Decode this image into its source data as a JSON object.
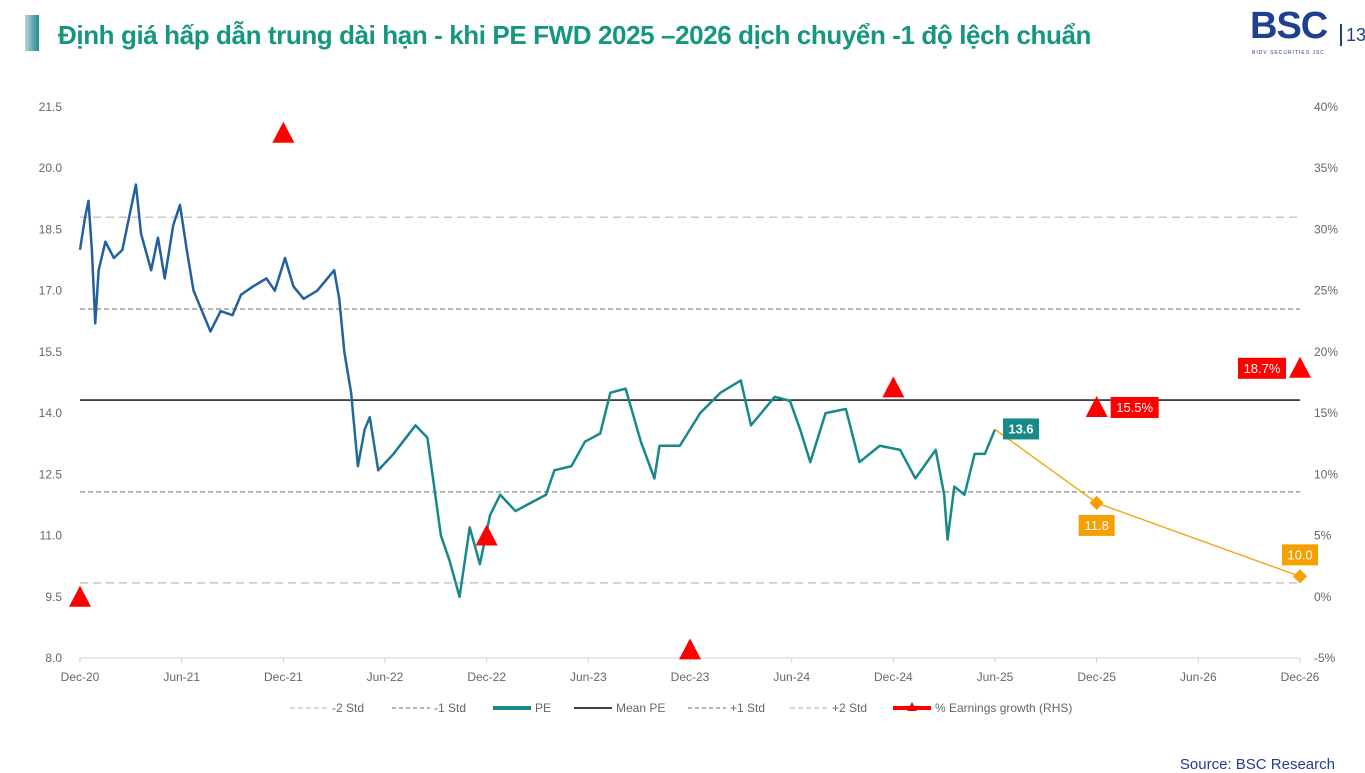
{
  "header": {
    "title": "Định giá hấp dẫn trung dài hạn - khi PE FWD 2025 –2026 dịch chuyển -1 độ lệch chuẩn",
    "logo": "BSC",
    "logo_sub": "BIDV SECURITIES JSC",
    "page": "13"
  },
  "source": "Source: BSC Research",
  "chart_data": {
    "type": "line",
    "x_unit": "months since Dec-20",
    "xticks": [
      "Dec-20",
      "Jun-21",
      "Dec-21",
      "Jun-22",
      "Dec-22",
      "Jun-23",
      "Dec-23",
      "Jun-24",
      "Dec-24",
      "Jun-25",
      "Dec-25",
      "Jun-26",
      "Dec-26"
    ],
    "ylim": [
      8.0,
      21.5
    ],
    "yticks": [
      "8.0",
      "9.5",
      "11.0",
      "12.5",
      "14.0",
      "15.5",
      "17.0",
      "18.5",
      "20.0",
      "21.5"
    ],
    "y2lim": [
      -5,
      40
    ],
    "y2ticks": [
      "-5%",
      "0%",
      "5%",
      "10%",
      "15%",
      "20%",
      "25%",
      "30%",
      "35%",
      "40%"
    ],
    "bands": {
      "-2 Std": 9.84,
      "-1 Std": 12.07,
      "Mean PE": 14.32,
      "+1 Std": 16.55,
      "+2 Std": 18.8
    },
    "pe": {
      "name": "PE",
      "points": [
        [
          0,
          18.0
        ],
        [
          0.3,
          18.8
        ],
        [
          0.5,
          19.2
        ],
        [
          0.7,
          18.0
        ],
        [
          0.9,
          16.2
        ],
        [
          1.1,
          17.5
        ],
        [
          1.5,
          18.2
        ],
        [
          2,
          17.8
        ],
        [
          2.5,
          18.0
        ],
        [
          3,
          19.0
        ],
        [
          3.3,
          19.6
        ],
        [
          3.6,
          18.4
        ],
        [
          4.2,
          17.5
        ],
        [
          4.6,
          18.3
        ],
        [
          5,
          17.3
        ],
        [
          5.5,
          18.6
        ],
        [
          5.9,
          19.1
        ],
        [
          6.3,
          18.0
        ],
        [
          6.7,
          17.0
        ],
        [
          7.2,
          16.5
        ],
        [
          7.7,
          16.0
        ],
        [
          8.3,
          16.5
        ],
        [
          9,
          16.4
        ],
        [
          9.5,
          16.9
        ],
        [
          10.2,
          17.1
        ],
        [
          11,
          17.3
        ],
        [
          11.5,
          17.0
        ],
        [
          12.1,
          17.8
        ],
        [
          12.6,
          17.1
        ],
        [
          13.2,
          16.8
        ],
        [
          14,
          17.0
        ],
        [
          14.6,
          17.3
        ],
        [
          15,
          17.5
        ],
        [
          15.3,
          16.8
        ],
        [
          15.6,
          15.5
        ],
        [
          16,
          14.5
        ],
        [
          16.4,
          12.7
        ],
        [
          16.8,
          13.6
        ],
        [
          17.1,
          13.9
        ],
        [
          17.6,
          12.6
        ],
        [
          18.5,
          13.0
        ],
        [
          19.8,
          13.7
        ],
        [
          20.5,
          13.4
        ],
        [
          20.7,
          12.8
        ],
        [
          21.3,
          11.0
        ],
        [
          21.8,
          10.4
        ],
        [
          22.4,
          9.5
        ],
        [
          23,
          11.2
        ],
        [
          23.6,
          10.3
        ],
        [
          24.2,
          11.5
        ],
        [
          24.8,
          12.0
        ],
        [
          25.7,
          11.6
        ],
        [
          26.6,
          11.8
        ],
        [
          27.5,
          12.0
        ],
        [
          28,
          12.6
        ],
        [
          29,
          12.7
        ],
        [
          29.8,
          13.3
        ],
        [
          30.7,
          13.5
        ],
        [
          31.3,
          14.5
        ],
        [
          32.2,
          14.6
        ],
        [
          33.1,
          13.3
        ],
        [
          33.9,
          12.4
        ],
        [
          34.2,
          13.2
        ],
        [
          35.4,
          13.2
        ],
        [
          36.6,
          14.0
        ],
        [
          37.8,
          14.5
        ],
        [
          39,
          14.8
        ],
        [
          39.6,
          13.7
        ],
        [
          40.2,
          14.0
        ],
        [
          41.0,
          14.4
        ],
        [
          41.9,
          14.3
        ],
        [
          42.5,
          13.6
        ],
        [
          43.1,
          12.8
        ],
        [
          44,
          14.0
        ],
        [
          45.2,
          14.1
        ],
        [
          46,
          12.8
        ],
        [
          47.2,
          13.2
        ],
        [
          48.4,
          13.1
        ],
        [
          49.3,
          12.4
        ],
        [
          50.5,
          13.1
        ],
        [
          51,
          12.0
        ],
        [
          51.2,
          10.9
        ],
        [
          51.6,
          12.2
        ],
        [
          52.2,
          12.0
        ],
        [
          52.8,
          13.0
        ],
        [
          53.4,
          13.0
        ],
        [
          54,
          13.6
        ]
      ]
    },
    "forecast": {
      "points": [
        [
          54,
          13.6
        ],
        [
          60,
          11.8
        ],
        [
          72,
          10.0
        ]
      ],
      "labels": [
        "13.6",
        "11.8",
        "10.0"
      ]
    },
    "earnings_growth": {
      "name": "% Earnings growth (RHS)",
      "points": [
        [
          0,
          0
        ],
        [
          12,
          37.9
        ],
        [
          24,
          5.0
        ],
        [
          36,
          -4.3
        ],
        [
          48,
          17.1
        ],
        [
          60,
          15.5
        ],
        [
          72,
          18.7
        ]
      ],
      "labels": {
        "60": "15.5%",
        "72": "18.7%"
      }
    },
    "legend": [
      "-2 Std",
      "-1 Std",
      "PE",
      "Mean PE",
      "+1 Std",
      "+2 Std",
      "% Earnings growth (RHS)"
    ],
    "legend_position": "bottom",
    "colors": {
      "pe_early": "#23609e",
      "pe_late": "#16898a",
      "forecast": "#f5a000",
      "growth": "#ff0000",
      "mean": "#000000",
      "std1": "#888888",
      "std2": "#c8c8c8"
    }
  }
}
